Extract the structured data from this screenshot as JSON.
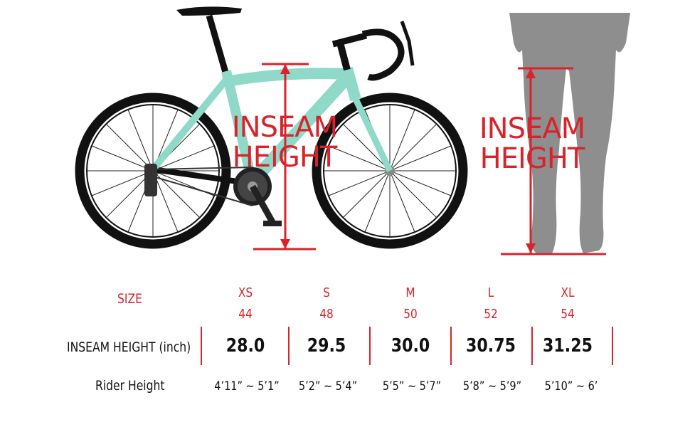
{
  "illustration": {
    "bike_label_line1": "INSEAM",
    "bike_label_line2": "HEIGHT",
    "legs_label_line1": "INSEAM",
    "legs_label_line2": "HEIGHT",
    "colors": {
      "accent": "#d8232a",
      "frame": "#8fd9c8",
      "tire": "#111111",
      "legs": "#8e8e8e"
    }
  },
  "table": {
    "size_header": "SIZE",
    "inseam_header": "INSEAM HEIGHT (inch)",
    "rider_header": "Rider Height",
    "sizes": [
      {
        "name": "XS",
        "number": "44",
        "inseam": "28.0",
        "rider": "4’11” ~ 5’1”"
      },
      {
        "name": "S",
        "number": "48",
        "inseam": "29.5",
        "rider": "5’2” ~ 5’4”"
      },
      {
        "name": "M",
        "number": "50",
        "inseam": "30.0",
        "rider": "5’5” ~ 5’7”"
      },
      {
        "name": "L",
        "number": "52",
        "inseam": "30.75",
        "rider": "5’8” ~ 5’9”"
      },
      {
        "name": "XL",
        "number": "54",
        "inseam": "31.25",
        "rider": "5’10” ~ 6’"
      }
    ]
  }
}
